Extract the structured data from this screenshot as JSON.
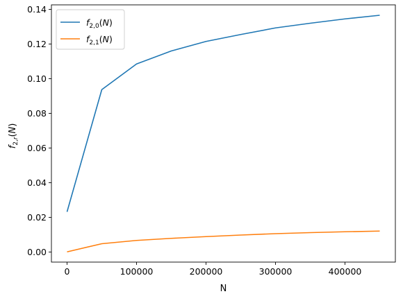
{
  "chart_data": {
    "type": "line",
    "title": "",
    "xlabel": "N",
    "ylabel": "f_{2,r}(N)",
    "xlim": [
      -22500,
      472500
    ],
    "ylim": [
      -0.0058,
      0.1426
    ],
    "xticks": [
      0,
      100000,
      200000,
      300000,
      400000
    ],
    "xtick_labels": [
      "0",
      "100000",
      "200000",
      "300000",
      "400000"
    ],
    "yticks": [
      0.0,
      0.02,
      0.04,
      0.06,
      0.08,
      0.1,
      0.12,
      0.14
    ],
    "ytick_labels": [
      "0.00",
      "0.02",
      "0.04",
      "0.06",
      "0.08",
      "0.10",
      "0.12",
      "0.14"
    ],
    "grid": false,
    "legend_position": "top-left",
    "series": [
      {
        "name": "f_{2,0}(N)",
        "color": "#1f77b4",
        "x": [
          0,
          50000,
          100000,
          150000,
          200000,
          250000,
          300000,
          350000,
          400000,
          450000
        ],
        "y": [
          0.0232,
          0.0937,
          0.1085,
          0.116,
          0.1215,
          0.1255,
          0.1293,
          0.132,
          0.1345,
          0.1366
        ]
      },
      {
        "name": "f_{2,1}(N)",
        "color": "#ff7f0e",
        "x": [
          0,
          50000,
          100000,
          150000,
          200000,
          250000,
          300000,
          350000,
          400000,
          450000
        ],
        "y": [
          0.0001,
          0.0048,
          0.0067,
          0.0079,
          0.0089,
          0.0098,
          0.0106,
          0.0112,
          0.0117,
          0.0121
        ]
      }
    ]
  }
}
